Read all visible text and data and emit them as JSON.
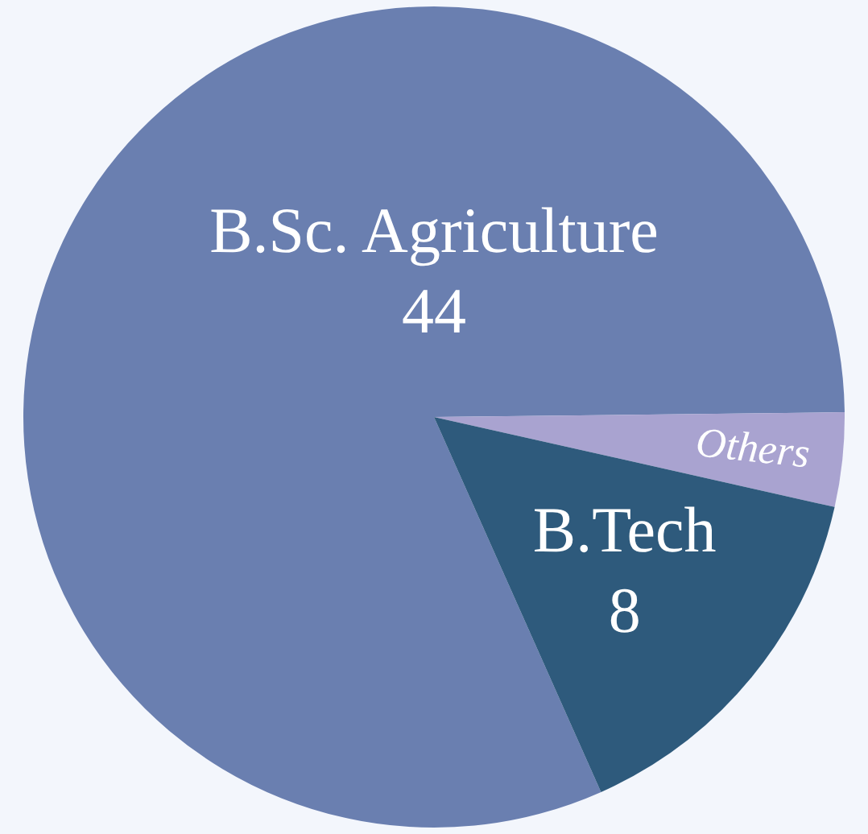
{
  "chart_data": {
    "type": "pie",
    "categories": [
      "B.Sc. Agriculture",
      "Others",
      "B.Tech"
    ],
    "values": [
      44,
      2,
      8
    ],
    "colors": [
      "#6a7fb0",
      "#a9a3d0",
      "#2e5a7c"
    ],
    "value_labels": [
      "44",
      null,
      "8"
    ],
    "legend": false
  }
}
